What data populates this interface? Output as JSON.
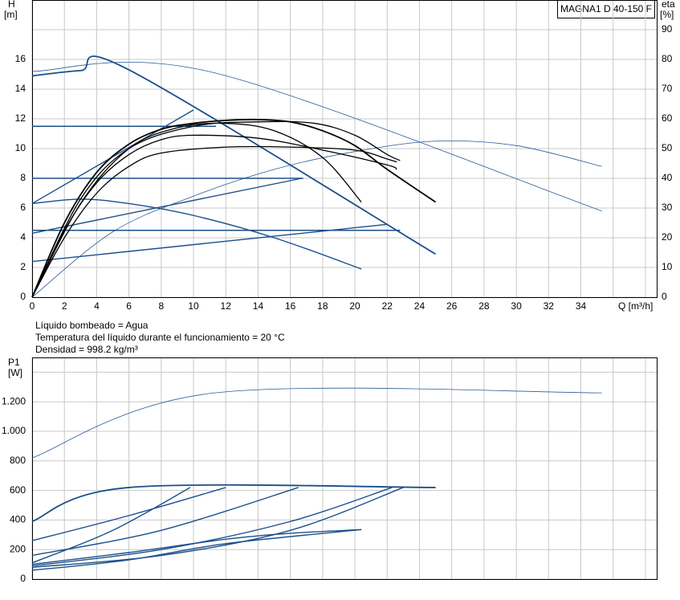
{
  "chart_data": [
    {
      "type": "line",
      "title": "MAGNA1 D 40-150 F",
      "y_label": [
        "H",
        "[m]"
      ],
      "y2_label": [
        "eta",
        "[%]"
      ],
      "x_label": "Q [m³/h]",
      "xlim": [
        0,
        38.7
      ],
      "ylim": [
        0,
        20
      ],
      "y2lim": [
        0,
        100
      ],
      "xticks": [
        0,
        2,
        4,
        6,
        8,
        10,
        12,
        14,
        16,
        18,
        20,
        22,
        24,
        26,
        28,
        30,
        32,
        34
      ],
      "xgrid": [
        0,
        2,
        4,
        6,
        8,
        10,
        12,
        14,
        16,
        18,
        20,
        22,
        24,
        26,
        28,
        30,
        32,
        34,
        36,
        38
      ],
      "yticks": [
        0,
        2,
        4,
        6,
        8,
        10,
        12,
        14,
        16
      ],
      "y2ticks": [
        0,
        10,
        20,
        30,
        40,
        50,
        60,
        70,
        80,
        90
      ],
      "grid": true,
      "series": [
        {
          "color": "#2b5a9a",
          "width": 0.8,
          "axis": "y2",
          "x": [
            0,
            5,
            10,
            15,
            20,
            25,
            30,
            35.3
          ],
          "values": [
            0,
            22,
            34,
            43,
            49,
            52.5,
            51,
            44
          ]
        },
        {
          "color": "#2b5a9a",
          "width": 0.8,
          "x": [
            0,
            11.3,
            35.3
          ],
          "values": [
            15.2,
            15.1,
            5.8
          ]
        },
        {
          "color": "#1a4f8b",
          "width": 1.8,
          "x": [
            0,
            3,
            6,
            25
          ],
          "values": [
            14.9,
            15.25,
            15.3,
            2.9
          ]
        },
        {
          "color": "#1a4f8b",
          "width": 1.4,
          "x": [
            0,
            11.4
          ],
          "values": [
            11.5,
            11.5
          ]
        },
        {
          "color": "#1a4f8b",
          "width": 1.4,
          "x": [
            0,
            16.8
          ],
          "values": [
            8,
            8
          ]
        },
        {
          "color": "#1a4f8b",
          "width": 1.4,
          "x": [
            0,
            22.8
          ],
          "values": [
            4.5,
            4.5
          ]
        },
        {
          "color": "#1a4f8b",
          "width": 1.4,
          "x": [
            0,
            10
          ],
          "values": [
            6.3,
            12.6
          ]
        },
        {
          "color": "#1a4f8b",
          "width": 1.4,
          "x": [
            0,
            16.7
          ],
          "values": [
            4.3,
            8
          ]
        },
        {
          "color": "#1a4f8b",
          "width": 1.4,
          "x": [
            0,
            22
          ],
          "values": [
            2.4,
            4.9
          ]
        },
        {
          "color": "#1a4f8b",
          "width": 1.4,
          "x": [
            0,
            3,
            6,
            10,
            15,
            20.4
          ],
          "values": [
            6.3,
            6.6,
            6.3,
            5.5,
            4,
            1.9
          ]
        },
        {
          "color": "#000000",
          "width": 1.3,
          "x": [
            0,
            2,
            4,
            6,
            8,
            12,
            16,
            20,
            22,
            22.6
          ],
          "values": [
            0,
            4,
            7,
            8.8,
            9.7,
            10.1,
            10.1,
            9.9,
            9.3,
            9.1
          ]
        },
        {
          "color": "#000000",
          "width": 1.3,
          "x": [
            0,
            2,
            4,
            6,
            8,
            10,
            14,
            18,
            22,
            22.6
          ],
          "values": [
            0,
            4.5,
            7.7,
            9.6,
            10.6,
            10.9,
            10.7,
            9.9,
            8.9,
            8.6
          ]
        },
        {
          "color": "#000000",
          "width": 1.3,
          "x": [
            0,
            3,
            6,
            9,
            12,
            15,
            18,
            20.4
          ],
          "values": [
            0,
            6.3,
            10,
            11.4,
            11.7,
            11.2,
            9.4,
            6.4
          ]
        },
        {
          "color": "#000000",
          "width": 1.3,
          "x": [
            0,
            3,
            6,
            10,
            14,
            17.5,
            20,
            22,
            22.8
          ],
          "values": [
            0,
            6.6,
            10,
            11.5,
            11.8,
            11.7,
            10.9,
            9.6,
            9.2
          ]
        },
        {
          "color": "#000000",
          "width": 1.8,
          "x": [
            0,
            2,
            4,
            6,
            8,
            10,
            12,
            14,
            16,
            18,
            20,
            22,
            25
          ],
          "values": [
            0,
            5,
            8.4,
            10.3,
            11.3,
            11.7,
            11.9,
            11.95,
            11.8,
            11.2,
            10.2,
            8.6,
            6.4
          ]
        }
      ]
    },
    {
      "type": "line",
      "y_label": [
        "P1",
        "[W]"
      ],
      "xlim": [
        0,
        38.7
      ],
      "ylim": [
        0,
        1500
      ],
      "xgrid": [
        0,
        2,
        4,
        6,
        8,
        10,
        12,
        14,
        16,
        18,
        20,
        22,
        24,
        26,
        28,
        30,
        32,
        34,
        36,
        38
      ],
      "yticks": [
        0,
        200,
        400,
        600,
        800,
        {
          "value": 1000,
          "label": "1.000"
        },
        {
          "value": 1200,
          "label": "1.200"
        }
      ],
      "ygrid": [
        0,
        200,
        400,
        600,
        800,
        1000,
        1200,
        1400
      ],
      "grid": true,
      "series": [
        {
          "color": "#2b5a9a",
          "width": 0.8,
          "x": [
            0,
            11.3,
            35.3
          ],
          "values": [
            820,
            1260,
            1260
          ]
        },
        {
          "color": "#1a4f8b",
          "width": 1.8,
          "x": [
            0,
            6,
            25
          ],
          "values": [
            390,
            620,
            620
          ]
        },
        {
          "color": "#1a4f8b",
          "width": 1.4,
          "x": [
            0,
            6,
            12
          ],
          "values": [
            260,
            430,
            620
          ]
        },
        {
          "color": "#1a4f8b",
          "width": 1.4,
          "x": [
            0,
            8,
            16.5
          ],
          "values": [
            160,
            330,
            620
          ]
        },
        {
          "color": "#1a4f8b",
          "width": 1.4,
          "x": [
            0,
            5,
            9.8
          ],
          "values": [
            110,
            330,
            620
          ]
        },
        {
          "color": "#1a4f8b",
          "width": 1.4,
          "x": [
            0,
            8,
            16,
            22.3
          ],
          "values": [
            90,
            200,
            390,
            620
          ]
        },
        {
          "color": "#1a4f8b",
          "width": 1.4,
          "x": [
            0,
            8,
            16,
            23
          ],
          "values": [
            80,
            160,
            330,
            620
          ]
        },
        {
          "color": "#1a4f8b",
          "width": 1.4,
          "x": [
            0,
            6,
            12,
            20.4
          ],
          "values": [
            60,
            130,
            240,
            335
          ]
        },
        {
          "color": "#1a4f8b",
          "width": 1.4,
          "x": [
            0,
            6,
            12,
            16,
            20.4
          ],
          "values": [
            100,
            180,
            270,
            310,
            335
          ]
        }
      ]
    }
  ],
  "annotations": [
    "Líquido bombeado = Agua",
    "Temperatura del líquido durante el funcionamiento = 20 °C",
    "Densidad = 998.2 kg/m³"
  ]
}
